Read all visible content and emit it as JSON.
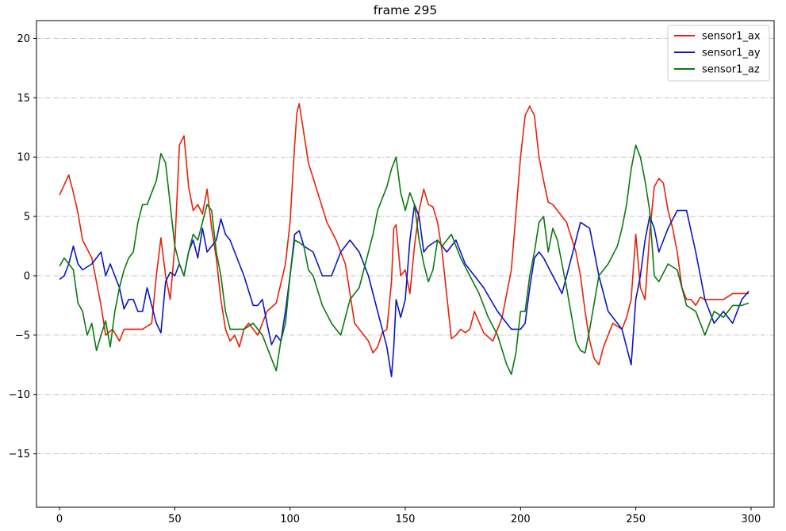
{
  "chart_data": {
    "type": "line",
    "title": "frame 295",
    "xlabel": "",
    "ylabel": "",
    "xlim": [
      -10,
      310
    ],
    "ylim": [
      -19.5,
      21.5
    ],
    "xticks": [
      0,
      50,
      100,
      150,
      200,
      250,
      300
    ],
    "yticks": [
      -15,
      -10,
      -5,
      0,
      5,
      10,
      15,
      20
    ],
    "grid": {
      "axis": "y",
      "style": "dash-dot",
      "color": "#b0b0b0"
    },
    "legend": {
      "position": "top-right"
    },
    "series": [
      {
        "name": "sensor1_ax",
        "color": "#e8210b",
        "x": [
          0,
          4,
          6,
          8,
          10,
          14,
          18,
          20,
          23,
          26,
          28,
          32,
          36,
          40,
          42,
          44,
          46,
          48,
          50,
          52,
          54,
          56,
          58,
          60,
          62,
          64,
          66,
          68,
          70,
          72,
          74,
          76,
          78,
          80,
          82,
          86,
          90,
          94,
          98,
          100,
          102,
          103,
          104,
          106,
          108,
          112,
          116,
          120,
          124,
          128,
          132,
          134,
          136,
          138,
          140,
          142,
          144,
          145,
          146,
          148,
          150,
          152,
          154,
          156,
          158,
          160,
          162,
          164,
          166,
          170,
          172,
          174,
          176,
          178,
          180,
          184,
          188,
          190,
          192,
          196,
          200,
          202,
          204,
          206,
          208,
          210,
          212,
          214,
          216,
          220,
          224,
          226,
          228,
          230,
          232,
          234,
          236,
          240,
          244,
          246,
          248,
          250,
          252,
          254,
          256,
          258,
          260,
          262,
          264,
          266,
          268,
          270,
          272,
          274,
          276,
          278,
          280,
          284,
          288,
          292,
          296,
          299
        ],
        "y": [
          6.8,
          8.5,
          7.0,
          5.3,
          3.0,
          1.5,
          -2.5,
          -5.0,
          -4.5,
          -5.5,
          -4.5,
          -4.5,
          -4.5,
          -4.0,
          0.0,
          3.2,
          0.0,
          -2.0,
          2.5,
          11.0,
          11.8,
          7.5,
          5.5,
          6.0,
          5.2,
          7.3,
          4.0,
          1.5,
          -2.0,
          -4.5,
          -5.5,
          -5.0,
          -6.0,
          -4.5,
          -4.0,
          -5.0,
          -3.0,
          -2.3,
          1.0,
          4.5,
          11.0,
          13.8,
          14.5,
          12.0,
          9.5,
          7.0,
          4.5,
          3.0,
          1.0,
          -4.0,
          -5.0,
          -5.5,
          -6.5,
          -6.0,
          -4.8,
          -4.5,
          -0.5,
          4.0,
          4.3,
          0.0,
          0.5,
          -1.5,
          2.5,
          5.5,
          7.3,
          6.0,
          5.8,
          4.5,
          2.0,
          -5.3,
          -5.0,
          -4.5,
          -4.8,
          -4.5,
          -3.0,
          -4.8,
          -5.5,
          -4.5,
          -3.5,
          0.5,
          10.0,
          13.5,
          14.3,
          13.5,
          10.0,
          8.0,
          6.2,
          6.0,
          5.5,
          4.5,
          2.0,
          0.0,
          -3.0,
          -5.5,
          -7.0,
          -7.5,
          -6.0,
          -4.0,
          -4.5,
          -3.5,
          -2.0,
          3.5,
          -1.0,
          -2.0,
          3.5,
          7.5,
          8.2,
          7.8,
          5.5,
          4.0,
          2.0,
          -1.0,
          -2.0,
          -2.0,
          -2.5,
          -1.8,
          -2.0,
          -2.0,
          -2.0,
          -1.5,
          -1.5,
          -1.5
        ]
      },
      {
        "name": "sensor1_ay",
        "color": "#0a15c4",
        "x": [
          0,
          2,
          4,
          6,
          8,
          10,
          14,
          18,
          20,
          22,
          24,
          26,
          28,
          30,
          32,
          34,
          36,
          38,
          40,
          42,
          44,
          46,
          48,
          50,
          52,
          54,
          56,
          58,
          60,
          62,
          64,
          66,
          68,
          70,
          72,
          74,
          76,
          80,
          84,
          86,
          88,
          90,
          92,
          94,
          96,
          98,
          100,
          102,
          104,
          106,
          110,
          114,
          118,
          122,
          126,
          130,
          134,
          138,
          142,
          144,
          145,
          146,
          148,
          150,
          152,
          154,
          156,
          158,
          160,
          164,
          168,
          172,
          176,
          180,
          184,
          190,
          196,
          200,
          202,
          204,
          206,
          208,
          210,
          214,
          218,
          222,
          226,
          230,
          234,
          238,
          242,
          244,
          246,
          248,
          250,
          252,
          254,
          256,
          258,
          260,
          264,
          268,
          272,
          276,
          280,
          284,
          288,
          292,
          296,
          299
        ],
        "y": [
          -0.3,
          0.0,
          1.0,
          2.5,
          1.0,
          0.5,
          1.0,
          2.0,
          0.0,
          1.0,
          0.0,
          -1.0,
          -2.8,
          -2.0,
          -2.0,
          -3.0,
          -3.0,
          -1.0,
          -2.5,
          -4.0,
          -4.8,
          -0.5,
          0.3,
          0.0,
          1.0,
          0.0,
          2.0,
          3.0,
          1.5,
          4.0,
          2.0,
          2.5,
          3.0,
          4.8,
          3.5,
          3.0,
          2.0,
          0.0,
          -2.5,
          -2.5,
          -2.0,
          -4.0,
          -5.8,
          -5.0,
          -5.5,
          -3.0,
          0.0,
          3.5,
          3.8,
          2.5,
          2.0,
          0.0,
          0.0,
          2.0,
          3.0,
          2.0,
          0.0,
          -3.0,
          -6.0,
          -8.5,
          -6.0,
          -2.0,
          -3.5,
          -2.0,
          3.0,
          6.0,
          5.0,
          2.0,
          2.5,
          3.0,
          2.0,
          3.0,
          1.0,
          0.0,
          -1.0,
          -3.0,
          -4.5,
          -4.5,
          -4.0,
          -1.0,
          1.5,
          2.0,
          1.5,
          0.0,
          -1.5,
          1.5,
          4.5,
          4.0,
          0.0,
          -3.0,
          -4.0,
          -4.5,
          -6.0,
          -7.5,
          -2.0,
          0.0,
          3.0,
          5.0,
          4.0,
          2.0,
          4.0,
          5.5,
          5.5,
          2.0,
          -2.0,
          -4.0,
          -3.0,
          -4.0,
          -2.0,
          -1.3
        ]
      },
      {
        "name": "sensor1_az",
        "color": "#0b7a10",
        "x": [
          0,
          2,
          4,
          6,
          8,
          10,
          12,
          14,
          16,
          18,
          20,
          22,
          24,
          26,
          28,
          30,
          32,
          34,
          36,
          38,
          40,
          42,
          44,
          46,
          48,
          50,
          52,
          54,
          56,
          58,
          60,
          62,
          64,
          66,
          68,
          70,
          72,
          74,
          76,
          80,
          84,
          88,
          92,
          94,
          96,
          98,
          100,
          102,
          104,
          106,
          108,
          110,
          114,
          118,
          122,
          126,
          130,
          132,
          134,
          136,
          138,
          140,
          142,
          144,
          146,
          148,
          150,
          152,
          154,
          156,
          158,
          160,
          162,
          164,
          166,
          170,
          174,
          178,
          182,
          186,
          190,
          194,
          196,
          198,
          200,
          202,
          204,
          206,
          208,
          210,
          212,
          214,
          216,
          218,
          220,
          224,
          226,
          228,
          230,
          234,
          238,
          242,
          244,
          246,
          248,
          250,
          252,
          254,
          256,
          258,
          260,
          264,
          268,
          272,
          276,
          280,
          284,
          288,
          292,
          296,
          299
        ],
        "y": [
          0.8,
          1.5,
          1.0,
          0.5,
          -2.3,
          -3.0,
          -5.0,
          -4.0,
          -6.3,
          -5.0,
          -3.8,
          -6.0,
          -3.0,
          -1.0,
          0.5,
          1.5,
          2.0,
          4.5,
          6.0,
          6.0,
          7.0,
          8.0,
          10.3,
          9.5,
          6.0,
          2.5,
          1.0,
          0.0,
          2.0,
          3.5,
          3.0,
          4.5,
          6.0,
          5.5,
          2.0,
          0.0,
          -3.0,
          -4.5,
          -4.5,
          -4.5,
          -4.0,
          -5.0,
          -7.0,
          -8.0,
          -5.5,
          -4.0,
          0.0,
          3.0,
          2.8,
          2.5,
          0.5,
          0.0,
          -2.5,
          -4.0,
          -5.0,
          -2.0,
          -1.0,
          0.5,
          2.0,
          3.5,
          5.5,
          6.5,
          7.5,
          9.0,
          10.0,
          7.0,
          5.5,
          7.0,
          6.0,
          3.0,
          1.0,
          -0.5,
          0.5,
          3.0,
          2.5,
          3.5,
          1.5,
          0.0,
          -1.5,
          -3.5,
          -5.0,
          -7.5,
          -8.3,
          -6.5,
          -3.0,
          -3.0,
          0.0,
          2.0,
          4.5,
          5.0,
          2.0,
          4.0,
          3.0,
          1.0,
          -1.0,
          -5.5,
          -6.3,
          -6.5,
          -4.5,
          0.0,
          1.0,
          2.5,
          4.0,
          6.0,
          9.0,
          11.0,
          10.0,
          8.0,
          5.5,
          0.0,
          -0.5,
          1.0,
          0.5,
          -2.5,
          -3.0,
          -5.0,
          -3.0,
          -3.5,
          -2.5,
          -2.5,
          -2.3
        ]
      }
    ]
  }
}
